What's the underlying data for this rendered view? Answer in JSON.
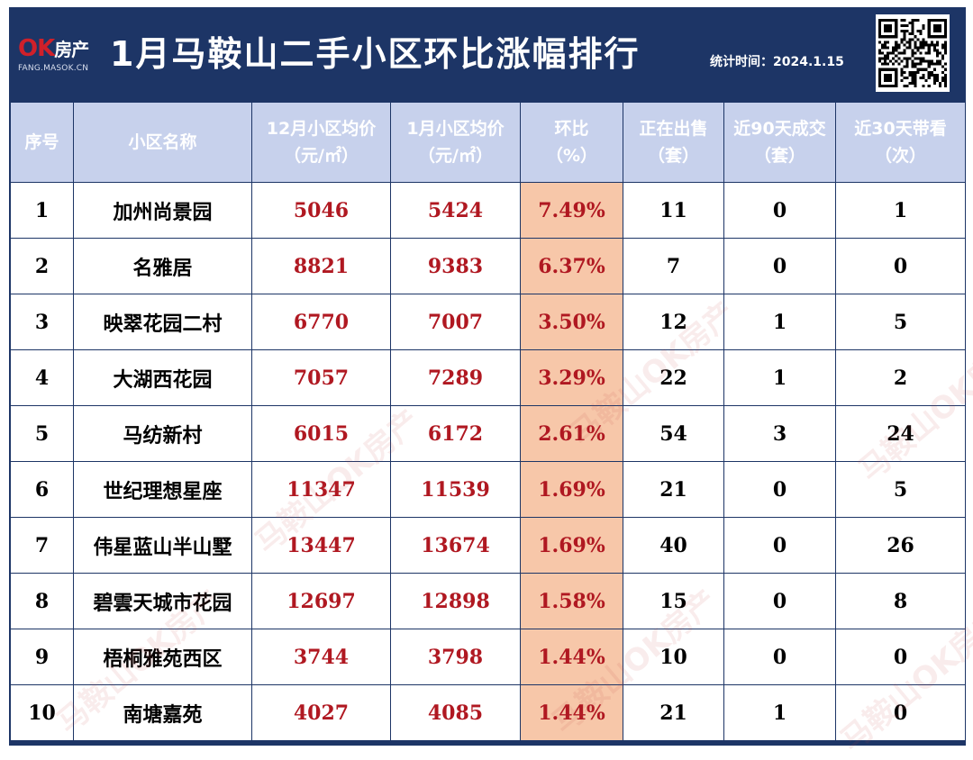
{
  "header": {
    "logo_mark_ok": "OK",
    "logo_mark_fc": "房产",
    "logo_sub": "FANG.MASOK.CN",
    "title": "1月马鞍山二手小区环比涨幅排行",
    "stat_label": "统计时间：",
    "stat_date": "2024.1.15"
  },
  "table": {
    "columns": [
      {
        "line1": "序号",
        "line2": ""
      },
      {
        "line1": "小区名称",
        "line2": ""
      },
      {
        "line1": "12月小区均价",
        "line2": "（元/㎡）"
      },
      {
        "line1": "1月小区均价",
        "line2": "（元/㎡）"
      },
      {
        "line1": "环比",
        "line2": "（%）"
      },
      {
        "line1": "正在出售",
        "line2": "（套）"
      },
      {
        "line1": "近90天成交",
        "line2": "（套）"
      },
      {
        "line1": "近30天带看",
        "line2": "（次）"
      }
    ],
    "rows": [
      {
        "idx": "1",
        "name": "加州尚景园",
        "dec_price": "5046",
        "jan_price": "5424",
        "mom": "7.49%",
        "on_sale": "11",
        "deals_90": "0",
        "views_30": "1"
      },
      {
        "idx": "2",
        "name": "名雅居",
        "dec_price": "8821",
        "jan_price": "9383",
        "mom": "6.37%",
        "on_sale": "7",
        "deals_90": "0",
        "views_30": "0"
      },
      {
        "idx": "3",
        "name": "映翠花园二村",
        "dec_price": "6770",
        "jan_price": "7007",
        "mom": "3.50%",
        "on_sale": "12",
        "deals_90": "1",
        "views_30": "5"
      },
      {
        "idx": "4",
        "name": "大湖西花园",
        "dec_price": "7057",
        "jan_price": "7289",
        "mom": "3.29%",
        "on_sale": "22",
        "deals_90": "1",
        "views_30": "2"
      },
      {
        "idx": "5",
        "name": "马纺新村",
        "dec_price": "6015",
        "jan_price": "6172",
        "mom": "2.61%",
        "on_sale": "54",
        "deals_90": "3",
        "views_30": "24"
      },
      {
        "idx": "6",
        "name": "世纪理想星座",
        "dec_price": "11347",
        "jan_price": "11539",
        "mom": "1.69%",
        "on_sale": "21",
        "deals_90": "0",
        "views_30": "5"
      },
      {
        "idx": "7",
        "name": "伟星蓝山半山墅",
        "dec_price": "13447",
        "jan_price": "13674",
        "mom": "1.69%",
        "on_sale": "40",
        "deals_90": "0",
        "views_30": "26"
      },
      {
        "idx": "8",
        "name": "碧雲天城市花园",
        "dec_price": "12697",
        "jan_price": "12898",
        "mom": "1.58%",
        "on_sale": "15",
        "deals_90": "0",
        "views_30": "8"
      },
      {
        "idx": "9",
        "name": "梧桐雅苑西区",
        "dec_price": "3744",
        "jan_price": "3798",
        "mom": "1.44%",
        "on_sale": "10",
        "deals_90": "0",
        "views_30": "0"
      },
      {
        "idx": "10",
        "name": "南塘嘉苑",
        "dec_price": "4027",
        "jan_price": "4085",
        "mom": "1.44%",
        "on_sale": "21",
        "deals_90": "1",
        "views_30": "0"
      }
    ]
  },
  "watermark": "马鞍山OK房产",
  "colors": {
    "header_bg": "#1d3566",
    "column_header_bg": "#c7d1ec",
    "price_red": "#b01821",
    "highlight_col": "#f7c7a9"
  }
}
